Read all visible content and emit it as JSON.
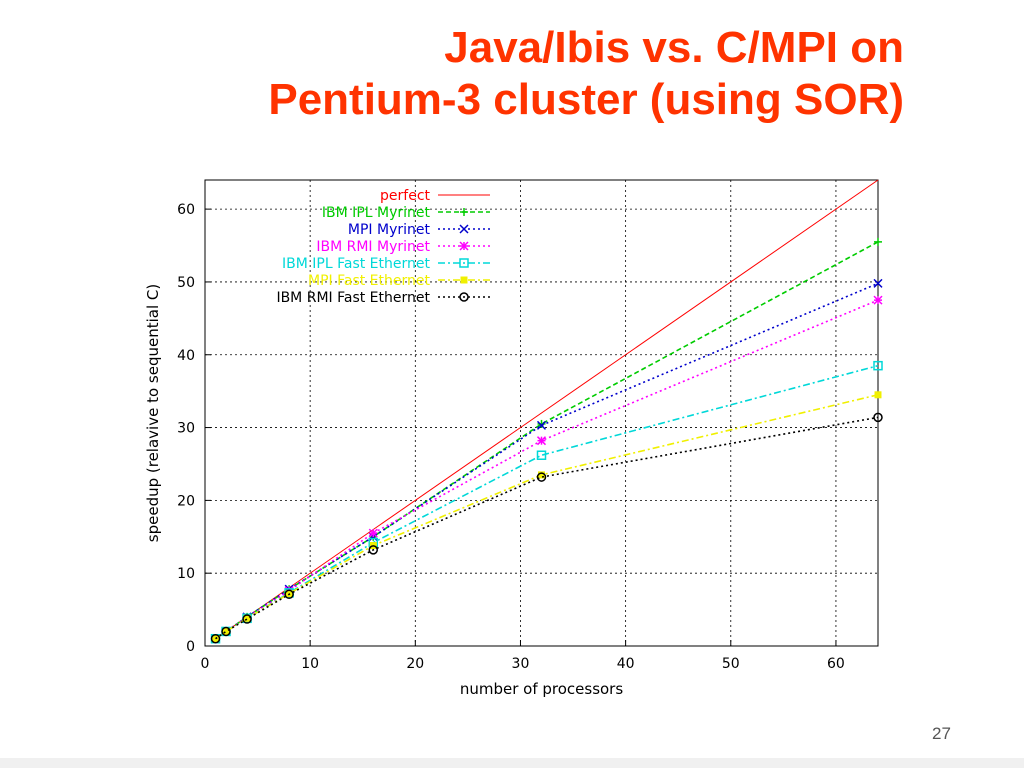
{
  "slide": {
    "title_line1": "Java/Ibis vs. C/MPI on",
    "title_line2": "Pentium-3 cluster (using SOR)",
    "page_number": "27"
  },
  "chart_data": {
    "type": "line",
    "xlabel": "number of processors",
    "ylabel": "speedup (relavive to sequential C)",
    "xlim": [
      0,
      64
    ],
    "ylim": [
      0,
      64
    ],
    "xticks": [
      0,
      10,
      20,
      30,
      40,
      50,
      60
    ],
    "yticks": [
      0,
      10,
      20,
      30,
      40,
      50,
      60
    ],
    "grid": true,
    "legend_position": "top-left",
    "series": [
      {
        "name": "perfect",
        "color": "#ff0000",
        "style": "solid",
        "marker": "none",
        "x": [
          1,
          64
        ],
        "y": [
          1,
          64
        ]
      },
      {
        "name": "IBM IPL Myrinet",
        "color": "#00cc00",
        "style": "dashed",
        "marker": "plus",
        "x": [
          1,
          2,
          4,
          8,
          16,
          32,
          64
        ],
        "y": [
          1,
          2,
          4,
          7.8,
          15,
          30.5,
          55.5
        ]
      },
      {
        "name": "MPI Myrinet",
        "color": "#0000cc",
        "style": "dotted",
        "marker": "cross",
        "x": [
          1,
          2,
          4,
          8,
          16,
          32,
          64
        ],
        "y": [
          1,
          2,
          4,
          7.8,
          15,
          30.3,
          49.8
        ]
      },
      {
        "name": "IBM RMI Myrinet",
        "color": "#ff00ff",
        "style": "dotted",
        "marker": "star",
        "x": [
          1,
          2,
          4,
          8,
          16,
          32,
          64
        ],
        "y": [
          1,
          2,
          3.9,
          7.6,
          15.5,
          28.2,
          47.5
        ]
      },
      {
        "name": "IBM IPL Fast Ethernet",
        "color": "#00d8d8",
        "style": "dashdot",
        "marker": "square",
        "x": [
          1,
          2,
          4,
          8,
          16,
          32,
          64
        ],
        "y": [
          1,
          2,
          3.8,
          7.3,
          14.2,
          26.2,
          38.5
        ]
      },
      {
        "name": "MPI Fast Ethernet",
        "color": "#f0f000",
        "style": "dashdot",
        "marker": "filled-square",
        "x": [
          1,
          2,
          4,
          8,
          16,
          32,
          64
        ],
        "y": [
          1,
          2,
          3.8,
          7.2,
          13.8,
          23.5,
          34.5
        ]
      },
      {
        "name": "IBM RMI Fast Ethernet",
        "color": "#000000",
        "style": "dotted",
        "marker": "circle",
        "x": [
          1,
          2,
          4,
          8,
          16,
          32,
          64
        ],
        "y": [
          1,
          2,
          3.7,
          7.1,
          13.2,
          23.2,
          31.4
        ]
      }
    ]
  }
}
